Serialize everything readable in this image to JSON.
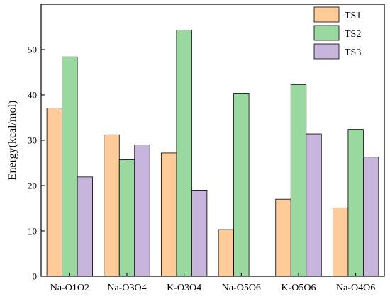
{
  "chart_data": {
    "type": "bar",
    "title": "",
    "xlabel": "",
    "ylabel": "Energy(kcal/mol)",
    "ylim": [
      0,
      60
    ],
    "yticks": [
      0,
      10,
      20,
      30,
      40,
      50
    ],
    "grid": false,
    "legend_position": "top-right",
    "categories": [
      "Na-O1O2",
      "Na-O3O4",
      "K-O3O4",
      "Na-O5O6",
      "K-O5O6",
      "Na-O4O6"
    ],
    "series": [
      {
        "name": "TS1",
        "color": "#FFCC99",
        "values": [
          37.1,
          31.2,
          27.2,
          10.3,
          17.0,
          15.1
        ]
      },
      {
        "name": "TS2",
        "color": "#99D9A0",
        "values": [
          48.4,
          25.7,
          54.3,
          40.4,
          42.3,
          32.4
        ]
      },
      {
        "name": "TS3",
        "color": "#C8B5DC",
        "values": [
          21.9,
          29.0,
          19.0,
          null,
          31.4,
          26.3
        ]
      }
    ]
  }
}
